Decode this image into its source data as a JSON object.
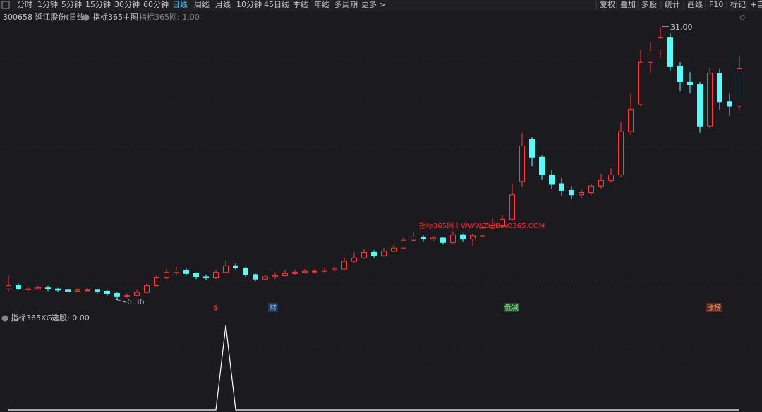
{
  "toolbar": {
    "periods": [
      "分时",
      "1分钟",
      "5分钟",
      "15分钟",
      "30分钟",
      "60分钟",
      "日线",
      "周线",
      "月线",
      "10分钟",
      "45日线",
      "季线",
      "年线",
      "多周期",
      "更多 >"
    ],
    "active_period": "日线",
    "tools": [
      "复权",
      "叠加",
      "多股",
      "统计",
      "画线",
      "F10",
      "标记",
      "+自"
    ]
  },
  "header": {
    "stock": "300658 延江股份(日线)",
    "indicator": "指标365主图",
    "indicator_value": "指标365网: 1.00"
  },
  "watermark": "指标365网丨WWW.ZHIBIAO365.COM",
  "markers": [
    "$",
    "财",
    "低减",
    "涨榜"
  ],
  "chart_data": {
    "type": "candlestick",
    "up_color": "#ff3b3b",
    "down_color": "#54fcfc",
    "ylim": [
      5.6,
      32.2
    ],
    "open": [
      7.3,
      7.6,
      7.3,
      7.3,
      7.4,
      7.3,
      7.2,
      7.1,
      7.2,
      7.2,
      7.1,
      6.9,
      6.6,
      6.7,
      7.0,
      7.6,
      8.3,
      8.8,
      9.0,
      8.7,
      8.4,
      8.3,
      8.8,
      9.4,
      9.2,
      8.6,
      8.2,
      8.4,
      8.5,
      8.7,
      8.8,
      8.9,
      8.9,
      9.0,
      9.1,
      9.8,
      10.1,
      10.6,
      10.3,
      10.7,
      11.0,
      11.7,
      12.0,
      11.8,
      11.9,
      11.5,
      12.2,
      11.8,
      12.1,
      12.8,
      13.0,
      13.6,
      17.0,
      20.8,
      19.2,
      17.6,
      16.8,
      16.2,
      15.8,
      16.0,
      16.6,
      17.1,
      17.6,
      21.5,
      24.0,
      27.8,
      28.8,
      30.0,
      27.4,
      26.0,
      25.8,
      22.0,
      26.8,
      24.2,
      23.8
    ],
    "high": [
      8.5,
      7.8,
      7.5,
      7.6,
      7.6,
      7.4,
      7.3,
      7.4,
      7.4,
      7.3,
      7.2,
      7.0,
      6.9,
      7.2,
      7.8,
      8.5,
      9.1,
      9.3,
      9.2,
      8.8,
      8.6,
      9.0,
      9.9,
      9.6,
      9.3,
      8.7,
      8.6,
      8.8,
      9.0,
      9.0,
      9.1,
      9.1,
      9.2,
      9.3,
      10.1,
      10.6,
      10.9,
      10.8,
      11.0,
      11.3,
      12.0,
      12.4,
      12.2,
      12.1,
      12.0,
      12.5,
      12.3,
      12.3,
      13.1,
      13.7,
      14.0,
      16.8,
      21.4,
      21.0,
      19.4,
      18.0,
      17.3,
      16.6,
      16.3,
      16.8,
      17.7,
      18.2,
      22.4,
      25.0,
      28.9,
      29.6,
      31.0,
      30.4,
      27.8,
      26.9,
      26.0,
      27.3,
      27.2,
      25.0,
      28.4
    ],
    "low": [
      7.1,
      7.2,
      7.1,
      7.2,
      7.1,
      7.0,
      7.0,
      7.0,
      7.1,
      6.9,
      6.7,
      6.36,
      6.5,
      6.6,
      6.9,
      7.5,
      8.2,
      8.6,
      8.5,
      8.2,
      8.1,
      8.2,
      8.7,
      9.0,
      8.4,
      8.0,
      8.1,
      8.2,
      8.4,
      8.6,
      8.7,
      8.7,
      8.8,
      8.9,
      9.0,
      9.7,
      10.0,
      10.1,
      10.2,
      10.6,
      10.9,
      11.6,
      11.6,
      11.6,
      11.3,
      11.4,
      11.6,
      11.2,
      12.0,
      12.7,
      12.9,
      13.5,
      16.5,
      18.4,
      17.2,
      16.3,
      15.7,
      15.4,
      15.5,
      15.8,
      16.3,
      16.9,
      17.4,
      21.2,
      23.8,
      26.8,
      28.2,
      27.0,
      25.2,
      25.0,
      21.4,
      21.8,
      23.5,
      23.0,
      23.5
    ],
    "close": [
      7.6,
      7.3,
      7.3,
      7.4,
      7.3,
      7.2,
      7.1,
      7.2,
      7.2,
      7.1,
      6.9,
      6.6,
      6.7,
      7.0,
      7.6,
      8.3,
      8.8,
      9.0,
      8.7,
      8.4,
      8.3,
      8.8,
      9.4,
      9.2,
      8.6,
      8.2,
      8.4,
      8.5,
      8.7,
      8.8,
      8.9,
      8.9,
      9.0,
      9.1,
      9.8,
      10.1,
      10.6,
      10.3,
      10.7,
      11.0,
      11.7,
      12.0,
      11.8,
      11.9,
      11.5,
      12.2,
      11.8,
      12.1,
      12.8,
      13.0,
      13.6,
      15.8,
      20.2,
      19.2,
      17.6,
      16.8,
      16.2,
      15.8,
      16.0,
      16.6,
      17.1,
      17.6,
      21.5,
      23.5,
      27.8,
      28.8,
      30.0,
      27.4,
      26.0,
      25.8,
      22.0,
      26.8,
      24.2,
      23.8,
      27.2
    ],
    "annotations": [
      {
        "value": 31.0,
        "label": "31.00"
      },
      {
        "value": 6.36,
        "label": "6.36"
      }
    ]
  },
  "sub_header": {
    "indicator": "指标365XG",
    "value": "选股: 0.00"
  },
  "sub_chart": {
    "type": "line",
    "color": "#ffffff",
    "ylim": [
      0,
      1
    ],
    "values": [
      0,
      0,
      0,
      0,
      0,
      0,
      0,
      0,
      0,
      0,
      0,
      0,
      0,
      0,
      0,
      0,
      0,
      0,
      0,
      0,
      0,
      0,
      1,
      0,
      0,
      0,
      0,
      0,
      0,
      0,
      0,
      0,
      0,
      0,
      0,
      0,
      0,
      0,
      0,
      0,
      0,
      0,
      0,
      0,
      0,
      0,
      0,
      0,
      0,
      0,
      0,
      0,
      0,
      0,
      0,
      0,
      0,
      0,
      0,
      0,
      0,
      0,
      0,
      0,
      0,
      0,
      0,
      0,
      0,
      0,
      0,
      0,
      0,
      0,
      0
    ]
  }
}
